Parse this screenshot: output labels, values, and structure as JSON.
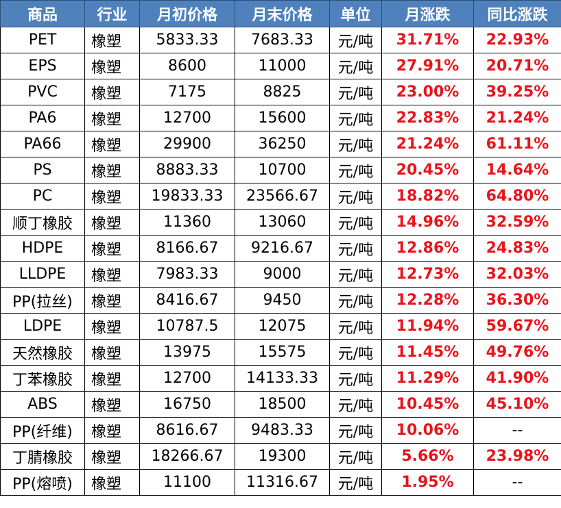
{
  "table": {
    "headers": [
      "商品",
      "行业",
      "月初价格",
      "月末价格",
      "单位",
      "月涨跌",
      "同比涨跌"
    ],
    "rows": [
      [
        "PET",
        "橡塑",
        "5833.33",
        "7683.33",
        "元/吨",
        "31.71%",
        "22.93%"
      ],
      [
        "EPS",
        "橡塑",
        "8600",
        "11000",
        "元/吨",
        "27.91%",
        "20.71%"
      ],
      [
        "PVC",
        "橡塑",
        "7175",
        "8825",
        "元/吨",
        "23.00%",
        "39.25%"
      ],
      [
        "PA6",
        "橡塑",
        "12700",
        "15600",
        "元/吨",
        "22.83%",
        "21.24%"
      ],
      [
        "PA66",
        "橡塑",
        "29900",
        "36250",
        "元/吨",
        "21.24%",
        "61.11%"
      ],
      [
        "PS",
        "橡塑",
        "8883.33",
        "10700",
        "元/吨",
        "20.45%",
        "14.64%"
      ],
      [
        "PC",
        "橡塑",
        "19833.33",
        "23566.67",
        "元/吨",
        "18.82%",
        "64.80%"
      ],
      [
        "顺丁橡胶",
        "橡塑",
        "11360",
        "13060",
        "元/吨",
        "14.96%",
        "32.59%"
      ],
      [
        "HDPE",
        "橡塑",
        "8166.67",
        "9216.67",
        "元/吨",
        "12.86%",
        "24.83%"
      ],
      [
        "LLDPE",
        "橡塑",
        "7983.33",
        "9000",
        "元/吨",
        "12.73%",
        "32.03%"
      ],
      [
        "PP(拉丝)",
        "橡塑",
        "8416.67",
        "9450",
        "元/吨",
        "12.28%",
        "36.30%"
      ],
      [
        "LDPE",
        "橡塑",
        "10787.5",
        "12075",
        "元/吨",
        "11.94%",
        "59.67%"
      ],
      [
        "天然橡胶",
        "橡塑",
        "13975",
        "15575",
        "元/吨",
        "11.45%",
        "49.76%"
      ],
      [
        "丁苯橡胶",
        "橡塑",
        "12700",
        "14133.33",
        "元/吨",
        "11.29%",
        "41.90%"
      ],
      [
        "ABS",
        "橡塑",
        "16750",
        "18500",
        "元/吨",
        "10.45%",
        "45.10%"
      ],
      [
        "PP(纤维)",
        "橡塑",
        "8616.67",
        "9483.33",
        "元/吨",
        "10.06%",
        "--"
      ],
      [
        "丁腈橡胶",
        "橡塑",
        "18266.67",
        "19300",
        "元/吨",
        "5.66%",
        "23.98%"
      ],
      [
        "PP(熔喷)",
        "橡塑",
        "11100",
        "11316.67",
        "元/吨",
        "1.95%",
        "--"
      ]
    ]
  },
  "colors": {
    "header_bg": "#4f81bd",
    "header_text": "#ffffff",
    "positive_change": "#e8141b",
    "grid_line": "#000000"
  }
}
